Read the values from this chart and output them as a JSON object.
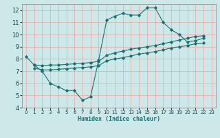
{
  "bg_color": "#cce8e8",
  "grid_color": "#f5a0a0",
  "line_color": "#1a7070",
  "xlabel": "Humidex (Indice chaleur)",
  "ylim": [
    4,
    12.5
  ],
  "xlim": [
    -0.5,
    23.5
  ],
  "yticks": [
    4,
    5,
    6,
    7,
    8,
    9,
    10,
    11,
    12
  ],
  "xticks": [
    0,
    1,
    2,
    3,
    4,
    5,
    6,
    7,
    8,
    9,
    10,
    11,
    12,
    13,
    14,
    15,
    16,
    17,
    18,
    19,
    20,
    21,
    22,
    23
  ],
  "curve1_x": [
    0,
    1,
    2,
    3,
    4,
    5,
    6,
    7,
    8,
    9,
    10,
    11,
    12,
    13,
    14,
    15,
    16,
    17,
    18,
    19,
    20,
    21,
    22
  ],
  "curve1_y": [
    8.2,
    7.5,
    7.0,
    6.0,
    5.7,
    5.4,
    5.4,
    4.6,
    4.9,
    7.9,
    11.2,
    11.5,
    11.75,
    11.6,
    11.6,
    12.2,
    12.2,
    11.0,
    10.4,
    10.0,
    9.4,
    9.5,
    9.7
  ],
  "curve2_x": [
    1,
    2,
    3,
    4,
    5,
    6,
    7,
    8,
    9,
    10,
    11,
    12,
    13,
    14,
    15,
    16,
    17,
    18,
    19,
    20,
    21,
    22
  ],
  "curve2_y": [
    7.5,
    7.45,
    7.5,
    7.5,
    7.55,
    7.6,
    7.65,
    7.7,
    7.8,
    8.3,
    8.5,
    8.65,
    8.8,
    8.9,
    9.0,
    9.1,
    9.25,
    9.4,
    9.55,
    9.7,
    9.85,
    9.9
  ],
  "curve3_x": [
    1,
    2,
    3,
    4,
    5,
    6,
    7,
    8,
    9,
    10,
    11,
    12,
    13,
    14,
    15,
    16,
    17,
    18,
    19,
    20,
    21,
    22
  ],
  "curve3_y": [
    7.25,
    7.1,
    7.1,
    7.15,
    7.2,
    7.25,
    7.3,
    7.35,
    7.45,
    7.85,
    8.0,
    8.1,
    8.25,
    8.4,
    8.5,
    8.6,
    8.75,
    8.9,
    9.0,
    9.1,
    9.25,
    9.3
  ],
  "tick_fontsize": 5,
  "xlabel_fontsize": 6,
  "lw": 0.8,
  "ms": 1.8
}
